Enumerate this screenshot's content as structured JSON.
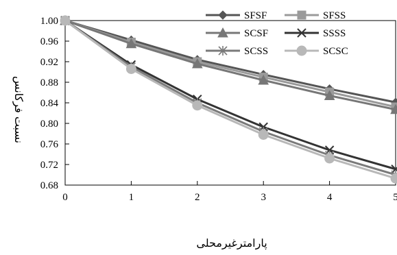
{
  "chart_data": {
    "type": "line",
    "title": "",
    "xlabel": "پارامترغیرمحلی",
    "ylabel": "نسبت فرکانس",
    "xlim": [
      0,
      5
    ],
    "ylim": [
      0.68,
      1.0
    ],
    "x_ticks": [
      "0",
      "1",
      "2",
      "3",
      "4",
      "5"
    ],
    "y_ticks": [
      "0.68",
      "0.72",
      "0.76",
      "0.80",
      "0.84",
      "0.88",
      "0.92",
      "0.96",
      "1.00"
    ],
    "grid": false,
    "legend_position": "top-right",
    "x": [
      0,
      1,
      2,
      3,
      4,
      5
    ],
    "series": [
      {
        "name": "SFSF",
        "values": [
          1.0,
          0.962,
          0.924,
          0.895,
          0.867,
          0.841
        ],
        "color": "#555555",
        "marker": "diamond"
      },
      {
        "name": "SFSS",
        "values": [
          1.0,
          0.958,
          0.92,
          0.89,
          0.861,
          0.832
        ],
        "color": "#9a9a9a",
        "marker": "square"
      },
      {
        "name": "SCSF",
        "values": [
          1.0,
          0.955,
          0.916,
          0.884,
          0.854,
          0.827
        ],
        "color": "#777777",
        "marker": "triangle"
      },
      {
        "name": "SSSS",
        "values": [
          1.0,
          0.914,
          0.847,
          0.793,
          0.748,
          0.711
        ],
        "color": "#333333",
        "marker": "x"
      },
      {
        "name": "SCSS",
        "values": [
          1.0,
          0.91,
          0.84,
          0.784,
          0.738,
          0.7
        ],
        "color": "#7a7a7a",
        "marker": "asterisk"
      },
      {
        "name": "SCSC",
        "values": [
          1.0,
          0.906,
          0.835,
          0.778,
          0.732,
          0.693
        ],
        "color": "#b8b8b8",
        "marker": "circle"
      }
    ]
  }
}
